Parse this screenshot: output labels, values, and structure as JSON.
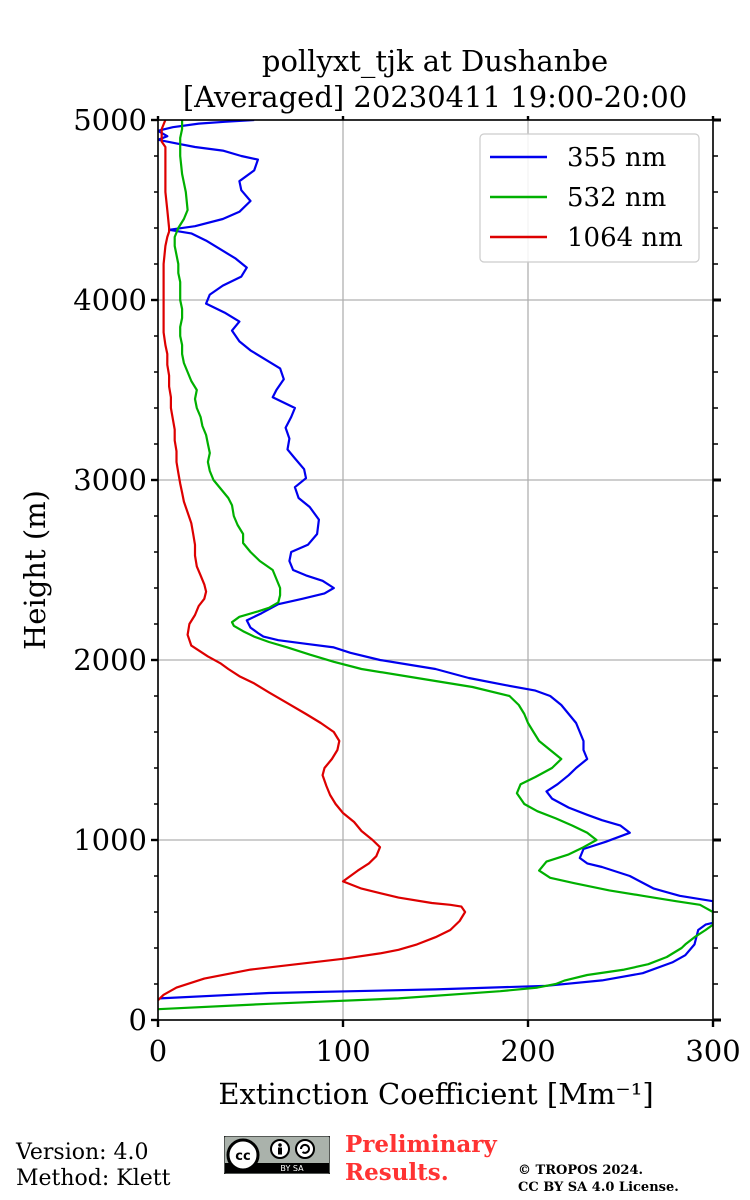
{
  "chart_data": {
    "type": "line",
    "title_line1": "pollyxt_tjk at Dushanbe",
    "title_line2": "[Averaged] 20230411 19:00-20:00",
    "xlabel": "Extinction Coefficient [Mm⁻¹]",
    "ylabel": "Height (m)",
    "xlim": [
      0,
      300
    ],
    "ylim": [
      0,
      5000
    ],
    "xticks": [
      0,
      100,
      200,
      300
    ],
    "yticks": [
      0,
      1000,
      2000,
      3000,
      4000,
      5000
    ],
    "grid": true,
    "legend_position": "top-right",
    "series": [
      {
        "name": "355 nm",
        "color": "#0000ee",
        "points": [
          [
            1,
            120
          ],
          [
            60,
            150
          ],
          [
            150,
            170
          ],
          [
            210,
            190
          ],
          [
            240,
            220
          ],
          [
            262,
            260
          ],
          [
            278,
            320
          ],
          [
            285,
            360
          ],
          [
            290,
            420
          ],
          [
            292,
            500
          ],
          [
            296,
            530
          ],
          [
            300,
            540
          ],
          [
            300,
            660
          ],
          [
            282,
            690
          ],
          [
            268,
            730
          ],
          [
            255,
            800
          ],
          [
            240,
            850
          ],
          [
            232,
            870
          ],
          [
            228,
            900
          ],
          [
            230,
            950
          ],
          [
            242,
            990
          ],
          [
            255,
            1040
          ],
          [
            250,
            1080
          ],
          [
            240,
            1110
          ],
          [
            232,
            1140
          ],
          [
            222,
            1180
          ],
          [
            213,
            1230
          ],
          [
            210,
            1270
          ],
          [
            216,
            1310
          ],
          [
            222,
            1360
          ],
          [
            226,
            1400
          ],
          [
            232,
            1450
          ],
          [
            230,
            1500
          ],
          [
            230,
            1550
          ],
          [
            228,
            1600
          ],
          [
            226,
            1650
          ],
          [
            222,
            1700
          ],
          [
            218,
            1750
          ],
          [
            212,
            1800
          ],
          [
            204,
            1830
          ],
          [
            188,
            1860
          ],
          [
            168,
            1900
          ],
          [
            150,
            1950
          ],
          [
            120,
            2000
          ],
          [
            104,
            2040
          ],
          [
            95,
            2070
          ],
          [
            80,
            2090
          ],
          [
            65,
            2110
          ],
          [
            57,
            2130
          ],
          [
            54,
            2150
          ],
          [
            50,
            2180
          ],
          [
            48,
            2220
          ],
          [
            56,
            2260
          ],
          [
            65,
            2310
          ],
          [
            78,
            2340
          ],
          [
            90,
            2370
          ],
          [
            95,
            2400
          ],
          [
            89,
            2440
          ],
          [
            80,
            2470
          ],
          [
            73,
            2500
          ],
          [
            71,
            2550
          ],
          [
            72,
            2600
          ],
          [
            81,
            2640
          ],
          [
            86,
            2700
          ],
          [
            87,
            2780
          ],
          [
            82,
            2850
          ],
          [
            76,
            2900
          ],
          [
            74,
            2960
          ],
          [
            80,
            3010
          ],
          [
            79,
            3060
          ],
          [
            74,
            3120
          ],
          [
            70,
            3170
          ],
          [
            71,
            3230
          ],
          [
            69,
            3290
          ],
          [
            72,
            3350
          ],
          [
            74,
            3400
          ],
          [
            68,
            3430
          ],
          [
            62,
            3460
          ],
          [
            64,
            3500
          ],
          [
            68,
            3560
          ],
          [
            66,
            3620
          ],
          [
            58,
            3670
          ],
          [
            50,
            3720
          ],
          [
            44,
            3770
          ],
          [
            40,
            3830
          ],
          [
            44,
            3880
          ],
          [
            36,
            3930
          ],
          [
            26,
            3980
          ],
          [
            28,
            4030
          ],
          [
            35,
            4080
          ],
          [
            45,
            4130
          ],
          [
            48,
            4180
          ],
          [
            42,
            4230
          ],
          [
            34,
            4280
          ],
          [
            26,
            4330
          ],
          [
            18,
            4370
          ],
          [
            6,
            4390
          ],
          [
            20,
            4410
          ],
          [
            35,
            4450
          ],
          [
            44,
            4490
          ],
          [
            50,
            4550
          ],
          [
            45,
            4610
          ],
          [
            44,
            4660
          ],
          [
            52,
            4720
          ],
          [
            54,
            4780
          ],
          [
            45,
            4800
          ],
          [
            35,
            4830
          ],
          [
            20,
            4850
          ],
          [
            10,
            4870
          ],
          [
            0,
            4890
          ],
          [
            5,
            4910
          ],
          [
            0,
            4940
          ],
          [
            8,
            4960
          ],
          [
            22,
            4980
          ],
          [
            36,
            4990
          ],
          [
            52,
            5000
          ]
        ]
      },
      {
        "name": "532 nm",
        "color": "#00b000",
        "points": [
          [
            0,
            60
          ],
          [
            60,
            90
          ],
          [
            130,
            120
          ],
          [
            185,
            160
          ],
          [
            205,
            180
          ],
          [
            215,
            200
          ],
          [
            220,
            220
          ],
          [
            232,
            250
          ],
          [
            252,
            280
          ],
          [
            265,
            310
          ],
          [
            275,
            350
          ],
          [
            283,
            400
          ],
          [
            285,
            420
          ],
          [
            290,
            460
          ],
          [
            296,
            500
          ],
          [
            300,
            530
          ],
          [
            300,
            600
          ],
          [
            293,
            640
          ],
          [
            280,
            660
          ],
          [
            262,
            690
          ],
          [
            244,
            720
          ],
          [
            225,
            760
          ],
          [
            212,
            790
          ],
          [
            206,
            830
          ],
          [
            210,
            880
          ],
          [
            222,
            920
          ],
          [
            230,
            960
          ],
          [
            237,
            1000
          ],
          [
            232,
            1040
          ],
          [
            224,
            1080
          ],
          [
            215,
            1120
          ],
          [
            205,
            1160
          ],
          [
            198,
            1200
          ],
          [
            194,
            1260
          ],
          [
            196,
            1310
          ],
          [
            204,
            1350
          ],
          [
            213,
            1400
          ],
          [
            218,
            1450
          ],
          [
            212,
            1500
          ],
          [
            206,
            1550
          ],
          [
            203,
            1600
          ],
          [
            200,
            1650
          ],
          [
            198,
            1700
          ],
          [
            195,
            1750
          ],
          [
            190,
            1800
          ],
          [
            170,
            1850
          ],
          [
            140,
            1900
          ],
          [
            110,
            1950
          ],
          [
            95,
            1990
          ],
          [
            82,
            2030
          ],
          [
            70,
            2070
          ],
          [
            60,
            2100
          ],
          [
            52,
            2130
          ],
          [
            46,
            2160
          ],
          [
            41,
            2190
          ],
          [
            40,
            2210
          ],
          [
            44,
            2240
          ],
          [
            54,
            2270
          ],
          [
            60,
            2290
          ],
          [
            65,
            2320
          ],
          [
            66,
            2360
          ],
          [
            66,
            2400
          ],
          [
            64,
            2450
          ],
          [
            62,
            2500
          ],
          [
            55,
            2550
          ],
          [
            50,
            2600
          ],
          [
            46,
            2650
          ],
          [
            46,
            2700
          ],
          [
            43,
            2750
          ],
          [
            41,
            2800
          ],
          [
            40,
            2860
          ],
          [
            38,
            2900
          ],
          [
            34,
            2950
          ],
          [
            30,
            3000
          ],
          [
            28,
            3050
          ],
          [
            27,
            3100
          ],
          [
            28,
            3150
          ],
          [
            27,
            3200
          ],
          [
            26,
            3250
          ],
          [
            24,
            3300
          ],
          [
            23,
            3350
          ],
          [
            21,
            3400
          ],
          [
            20,
            3450
          ],
          [
            21,
            3500
          ],
          [
            18,
            3550
          ],
          [
            16,
            3600
          ],
          [
            14,
            3650
          ],
          [
            13,
            3700
          ],
          [
            13,
            3750
          ],
          [
            12,
            3800
          ],
          [
            12,
            3850
          ],
          [
            13,
            3900
          ],
          [
            13,
            3950
          ],
          [
            12,
            4000
          ],
          [
            12,
            4050
          ],
          [
            12,
            4100
          ],
          [
            11,
            4150
          ],
          [
            11,
            4200
          ],
          [
            10,
            4250
          ],
          [
            9,
            4300
          ],
          [
            9,
            4350
          ],
          [
            11,
            4400
          ],
          [
            14,
            4450
          ],
          [
            16,
            4500
          ],
          [
            15,
            4600
          ],
          [
            13,
            4700
          ],
          [
            12,
            4800
          ],
          [
            12,
            4900
          ],
          [
            13,
            4950
          ],
          [
            13,
            5000
          ]
        ]
      },
      {
        "name": "1064 nm",
        "color": "#dd0000",
        "points": [
          [
            0,
            110
          ],
          [
            3,
            140
          ],
          [
            10,
            180
          ],
          [
            25,
            230
          ],
          [
            50,
            280
          ],
          [
            75,
            310
          ],
          [
            100,
            340
          ],
          [
            120,
            370
          ],
          [
            130,
            390
          ],
          [
            140,
            420
          ],
          [
            150,
            460
          ],
          [
            158,
            500
          ],
          [
            163,
            550
          ],
          [
            166,
            600
          ],
          [
            164,
            630
          ],
          [
            158,
            640
          ],
          [
            148,
            650
          ],
          [
            130,
            680
          ],
          [
            110,
            730
          ],
          [
            100,
            770
          ],
          [
            108,
            830
          ],
          [
            114,
            870
          ],
          [
            118,
            910
          ],
          [
            120,
            960
          ],
          [
            116,
            1000
          ],
          [
            110,
            1050
          ],
          [
            106,
            1100
          ],
          [
            100,
            1150
          ],
          [
            96,
            1200
          ],
          [
            93,
            1250
          ],
          [
            91,
            1300
          ],
          [
            89,
            1360
          ],
          [
            90,
            1400
          ],
          [
            94,
            1450
          ],
          [
            97,
            1500
          ],
          [
            98,
            1550
          ],
          [
            95,
            1600
          ],
          [
            88,
            1650
          ],
          [
            80,
            1700
          ],
          [
            70,
            1760
          ],
          [
            60,
            1820
          ],
          [
            52,
            1870
          ],
          [
            44,
            1910
          ],
          [
            38,
            1950
          ],
          [
            34,
            1980
          ],
          [
            27,
            2020
          ],
          [
            18,
            2080
          ],
          [
            16,
            2140
          ],
          [
            17,
            2200
          ],
          [
            20,
            2250
          ],
          [
            22,
            2300
          ],
          [
            25,
            2340
          ],
          [
            26,
            2380
          ],
          [
            25,
            2420
          ],
          [
            23,
            2470
          ],
          [
            21,
            2520
          ],
          [
            20,
            2580
          ],
          [
            20,
            2640
          ],
          [
            19,
            2700
          ],
          [
            18,
            2760
          ],
          [
            16,
            2820
          ],
          [
            14,
            2880
          ],
          [
            13,
            2930
          ],
          [
            12,
            2980
          ],
          [
            11,
            3040
          ],
          [
            10,
            3100
          ],
          [
            10,
            3160
          ],
          [
            9,
            3220
          ],
          [
            9,
            3280
          ],
          [
            8,
            3340
          ],
          [
            7,
            3400
          ],
          [
            7,
            3460
          ],
          [
            6,
            3520
          ],
          [
            6,
            3580
          ],
          [
            5,
            3640
          ],
          [
            5,
            3700
          ],
          [
            4,
            3750
          ],
          [
            3,
            3820
          ],
          [
            3,
            3900
          ],
          [
            3,
            4000
          ],
          [
            3,
            4100
          ],
          [
            3,
            4200
          ],
          [
            4,
            4300
          ],
          [
            5,
            4350
          ],
          [
            6,
            4380
          ],
          [
            6,
            4400
          ],
          [
            5,
            4500
          ],
          [
            4,
            4600
          ],
          [
            4,
            4700
          ],
          [
            4,
            4800
          ],
          [
            4,
            4850
          ],
          [
            2,
            4880
          ],
          [
            2,
            4950
          ],
          [
            4,
            5000
          ]
        ]
      }
    ]
  },
  "footer": {
    "version": "Version: 4.0",
    "method": "Method: Klett",
    "badge_text": "BY  SA",
    "badge_cc": "cc",
    "preliminary_line1": "Preliminary",
    "preliminary_line2": "Results.",
    "copyright_line1": "© TROPOS 2024.",
    "copyright_line2": "CC BY SA 4.0 License."
  }
}
